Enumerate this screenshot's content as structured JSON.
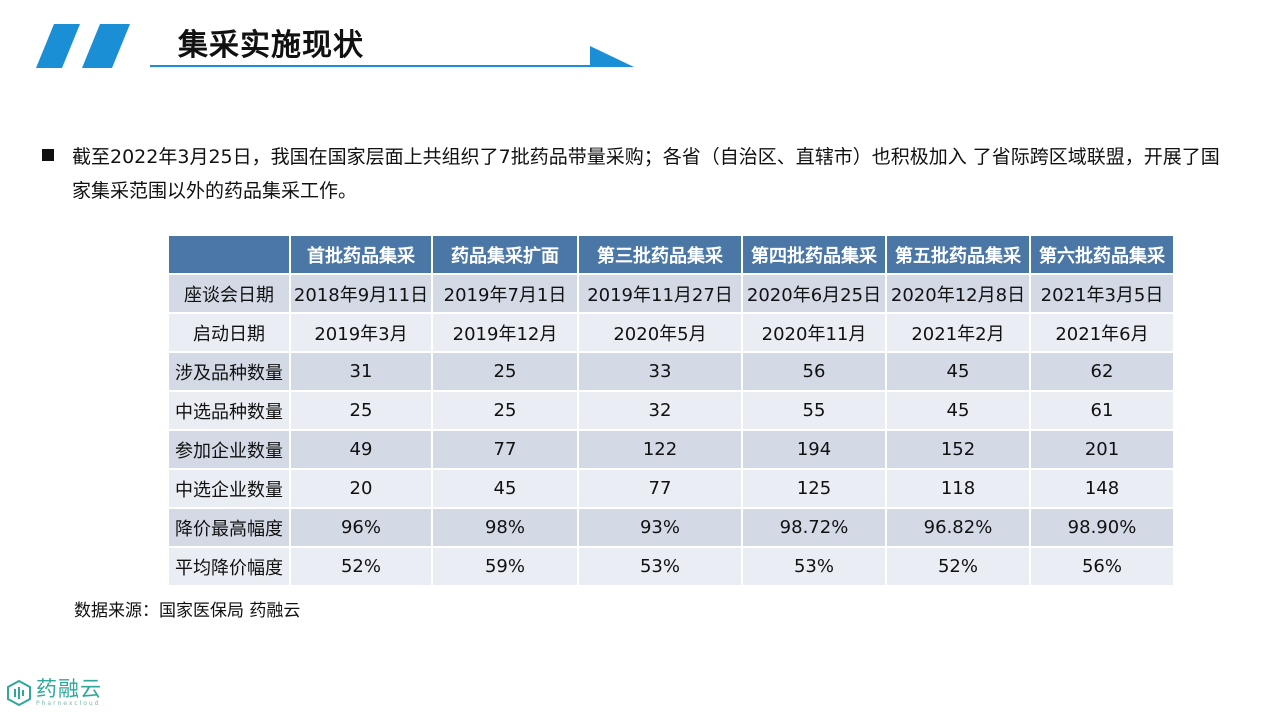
{
  "header": {
    "title": "集采实施现状"
  },
  "bullet": {
    "text": "截至2022年3月25日，我国在国家层面上共组织了7批药品带量采购；各省（自治区、直辖市）也积极加入 了省际跨区域联盟，开展了国家集采范围以外的药品集采工作。"
  },
  "table": {
    "columns": [
      "首批药品集采",
      "药品集采扩面",
      "第三批药品集采",
      "第四批药品集采",
      "第五批药品集采",
      "第六批药品集采"
    ],
    "rows": [
      {
        "label": "座谈会日期",
        "cells": [
          "2018年9月11日",
          "2019年7月1日",
          "2019年11月27日",
          "2020年6月25日",
          "2020年12月8日",
          "2021年3月5日"
        ]
      },
      {
        "label": "启动日期",
        "cells": [
          "2019年3月",
          "2019年12月",
          "2020年5月",
          "2020年11月",
          "2021年2月",
          "2021年6月"
        ]
      },
      {
        "label": "涉及品种数量",
        "cells": [
          "31",
          "25",
          "33",
          "56",
          "45",
          "62"
        ]
      },
      {
        "label": "中选品种数量",
        "cells": [
          "25",
          "25",
          "32",
          "55",
          "45",
          "61"
        ]
      },
      {
        "label": "参加企业数量",
        "cells": [
          "49",
          "77",
          "122",
          "194",
          "152",
          "201"
        ]
      },
      {
        "label": "中选企业数量",
        "cells": [
          "20",
          "45",
          "77",
          "125",
          "118",
          "148"
        ]
      },
      {
        "label": "降价最高幅度",
        "cells": [
          "96%",
          "98%",
          "93%",
          "98.72%",
          "96.82%",
          "98.90%"
        ]
      },
      {
        "label": "平均降价幅度",
        "cells": [
          "52%",
          "59%",
          "53%",
          "53%",
          "52%",
          "56%"
        ]
      }
    ]
  },
  "source": {
    "text": "数据来源：国家医保局 药融云"
  },
  "logo": {
    "name": "药融云",
    "subtitle": "Pharnexcloud"
  },
  "colors": {
    "accent": "#1a8fd6",
    "table_header": "#4b77a6",
    "row_odd": "#d4dae5",
    "row_even": "#eaedf3",
    "logo": "#2fa89a"
  }
}
